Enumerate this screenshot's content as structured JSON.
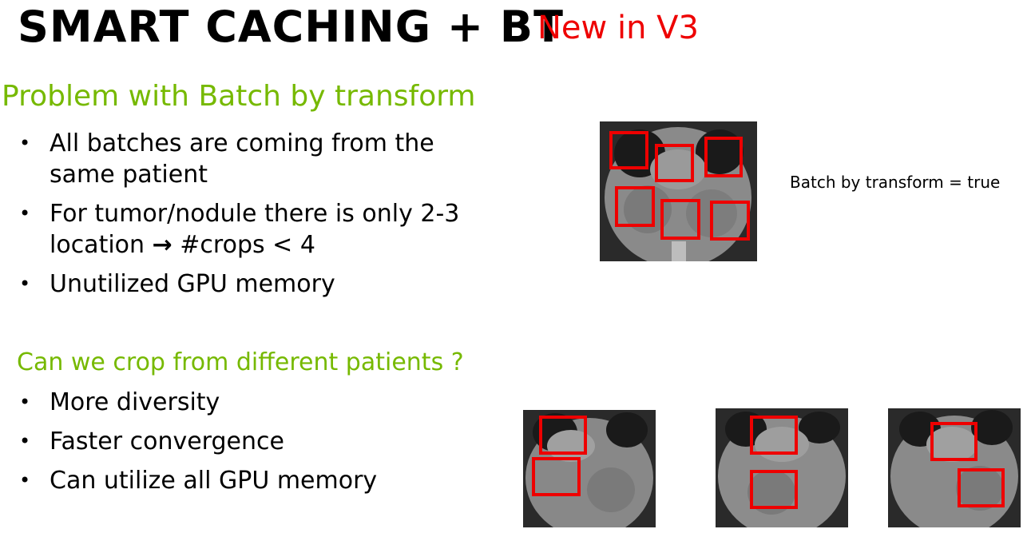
{
  "slide": {
    "title": "SMART CACHING + BT",
    "new_tag": "New in V3"
  },
  "section1": {
    "heading": "Problem with Batch by transform",
    "bullets": [
      "All batches are coming from the same patient",
      "For tumor/nodule there is only 2-3 location",
      "#crops < 4",
      "Unutilized GPU memory"
    ],
    "arrow_icon": "→"
  },
  "section2": {
    "heading": "Can we crop from different patients ?",
    "bullets": [
      "More diversity",
      "Faster convergence",
      "Can utilize all GPU memory"
    ]
  },
  "figure": {
    "caption": "Batch by transform = true",
    "crop_box_color": "#ee0000",
    "image_icon": "ct-scan-image"
  },
  "colors": {
    "accent_green": "#76b900",
    "accent_red": "#ee0000"
  }
}
